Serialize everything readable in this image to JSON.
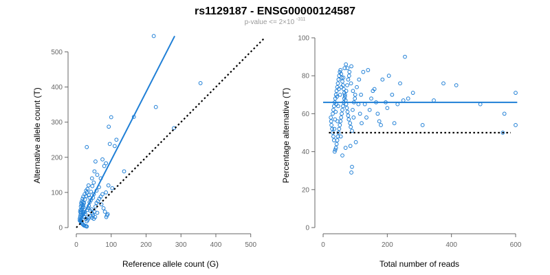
{
  "header": {
    "title": "rs1129187 - ENSG00000124587",
    "subtitle_prefix": "p-value <= 2×10",
    "subtitle_exponent": "-311"
  },
  "colors": {
    "point": "#1f7fd6",
    "fit": "#1f7fd6",
    "reference": "#000000",
    "axis": "#666666"
  },
  "chart_data": [
    {
      "type": "scatter",
      "xlabel": "Reference allele count (G)",
      "ylabel": "Alternative allele count (T)",
      "xlim": [
        0,
        540
      ],
      "ylim": [
        0,
        540
      ],
      "xticks": [
        0,
        100,
        200,
        300,
        400,
        500
      ],
      "yticks": [
        0,
        100,
        200,
        300,
        400,
        500
      ],
      "fit_line": {
        "from": [
          10,
          17
        ],
        "to": [
          282,
          545
        ]
      },
      "reference_line": {
        "from": [
          0,
          0
        ],
        "to": [
          540,
          540
        ],
        "style": "dotted"
      },
      "points": [
        [
          222,
          545
        ],
        [
          356,
          411
        ],
        [
          100,
          314
        ],
        [
          165,
          315
        ],
        [
          228,
          343
        ],
        [
          280,
          283
        ],
        [
          93,
          287
        ],
        [
          30,
          229
        ],
        [
          115,
          250
        ],
        [
          110,
          232
        ],
        [
          96,
          238
        ],
        [
          137,
          160
        ],
        [
          75,
          194
        ],
        [
          85,
          183
        ],
        [
          55,
          188
        ],
        [
          80,
          175
        ],
        [
          52,
          160
        ],
        [
          60,
          150
        ],
        [
          70,
          140
        ],
        [
          45,
          140
        ],
        [
          92,
          120
        ],
        [
          103,
          112
        ],
        [
          85,
          100
        ],
        [
          75,
          95
        ],
        [
          65,
          115
        ],
        [
          58,
          105
        ],
        [
          50,
          95
        ],
        [
          48,
          85
        ],
        [
          42,
          78
        ],
        [
          38,
          72
        ],
        [
          35,
          120
        ],
        [
          30,
          100
        ],
        [
          28,
          90
        ],
        [
          25,
          80
        ],
        [
          22,
          70
        ],
        [
          20,
          65
        ],
        [
          18,
          60
        ],
        [
          17,
          55
        ],
        [
          15,
          50
        ],
        [
          14,
          45
        ],
        [
          13,
          40
        ],
        [
          12,
          35
        ],
        [
          11,
          30
        ],
        [
          10,
          25
        ],
        [
          10,
          20
        ],
        [
          12,
          18
        ],
        [
          14,
          15
        ],
        [
          16,
          12
        ],
        [
          18,
          10
        ],
        [
          20,
          8
        ],
        [
          22,
          6
        ],
        [
          25,
          5
        ],
        [
          28,
          4
        ],
        [
          30,
          3
        ],
        [
          26,
          38
        ],
        [
          24,
          44
        ],
        [
          32,
          50
        ],
        [
          34,
          56
        ],
        [
          36,
          62
        ],
        [
          40,
          48
        ],
        [
          44,
          52
        ],
        [
          46,
          40
        ],
        [
          48,
          35
        ],
        [
          52,
          45
        ],
        [
          55,
          60
        ],
        [
          58,
          70
        ],
        [
          62,
          75
        ],
        [
          66,
          82
        ],
        [
          70,
          88
        ],
        [
          72,
          66
        ],
        [
          78,
          55
        ],
        [
          82,
          45
        ],
        [
          86,
          30
        ],
        [
          88,
          35
        ],
        [
          90,
          38
        ],
        [
          60,
          42
        ],
        [
          54,
          30
        ],
        [
          50,
          25
        ],
        [
          45,
          28
        ],
        [
          40,
          32
        ],
        [
          36,
          28
        ],
        [
          33,
          22
        ],
        [
          30,
          18
        ],
        [
          27,
          25
        ],
        [
          23,
          30
        ],
        [
          21,
          40
        ],
        [
          19,
          45
        ],
        [
          17,
          35
        ],
        [
          15,
          28
        ],
        [
          13,
          22
        ],
        [
          14,
          70
        ],
        [
          16,
          75
        ],
        [
          18,
          82
        ],
        [
          20,
          88
        ],
        [
          24,
          95
        ],
        [
          28,
          105
        ],
        [
          32,
          110
        ],
        [
          36,
          92
        ],
        [
          38,
          85
        ],
        [
          42,
          102
        ],
        [
          46,
          118
        ],
        [
          50,
          128
        ],
        [
          12,
          50
        ],
        [
          11,
          45
        ],
        [
          13,
          60
        ],
        [
          15,
          65
        ],
        [
          19,
          72
        ],
        [
          21,
          58
        ]
      ]
    },
    {
      "type": "scatter",
      "xlabel": "Total number of reads",
      "ylabel": "Percentage alternative (T)",
      "xlim": [
        0,
        600
      ],
      "ylim": [
        0,
        100
      ],
      "xticks": [
        0,
        200,
        400,
        600
      ],
      "yticks": [
        0,
        20,
        40,
        60,
        80,
        100
      ],
      "mean_line": 66,
      "reference_level": 50,
      "reference_range": [
        0,
        600
      ],
      "points": [
        [
          255,
          90
        ],
        [
          600,
          71
        ],
        [
          565,
          60
        ],
        [
          560,
          50
        ],
        [
          600,
          54
        ],
        [
          490,
          65
        ],
        [
          415,
          75
        ],
        [
          375,
          76
        ],
        [
          345,
          67
        ],
        [
          310,
          54
        ],
        [
          280,
          71
        ],
        [
          265,
          68
        ],
        [
          250,
          67
        ],
        [
          240,
          76
        ],
        [
          232,
          65
        ],
        [
          222,
          55
        ],
        [
          205,
          80
        ],
        [
          185,
          78
        ],
        [
          160,
          73
        ],
        [
          140,
          83
        ],
        [
          125,
          82
        ],
        [
          118,
          70
        ],
        [
          110,
          65
        ],
        [
          102,
          45
        ],
        [
          95,
          58
        ],
        [
          88,
          85
        ],
        [
          82,
          82
        ],
        [
          78,
          78
        ],
        [
          75,
          75
        ],
        [
          72,
          72
        ],
        [
          68,
          70
        ],
        [
          66,
          68
        ],
        [
          64,
          66
        ],
        [
          62,
          64
        ],
        [
          60,
          62
        ],
        [
          58,
          60
        ],
        [
          56,
          58
        ],
        [
          54,
          56
        ],
        [
          52,
          54
        ],
        [
          50,
          52
        ],
        [
          48,
          50
        ],
        [
          46,
          48
        ],
        [
          44,
          46
        ],
        [
          42,
          44
        ],
        [
          40,
          42
        ],
        [
          38,
          41
        ],
        [
          36,
          40
        ],
        [
          34,
          46
        ],
        [
          32,
          48
        ],
        [
          30,
          50
        ],
        [
          28,
          52
        ],
        [
          26,
          54
        ],
        [
          25,
          56
        ],
        [
          24,
          58
        ],
        [
          30,
          60
        ],
        [
          32,
          62
        ],
        [
          34,
          64
        ],
        [
          36,
          66
        ],
        [
          38,
          68
        ],
        [
          40,
          70
        ],
        [
          42,
          72
        ],
        [
          44,
          74
        ],
        [
          46,
          76
        ],
        [
          48,
          78
        ],
        [
          50,
          80
        ],
        [
          52,
          82
        ],
        [
          54,
          83
        ],
        [
          56,
          81
        ],
        [
          58,
          79
        ],
        [
          60,
          77
        ],
        [
          62,
          75
        ],
        [
          64,
          73
        ],
        [
          66,
          71
        ],
        [
          68,
          69
        ],
        [
          70,
          67
        ],
        [
          72,
          65
        ],
        [
          74,
          63
        ],
        [
          76,
          61
        ],
        [
          78,
          59
        ],
        [
          80,
          57
        ],
        [
          84,
          55
        ],
        [
          86,
          53
        ],
        [
          90,
          51
        ],
        [
          92,
          62
        ],
        [
          96,
          66
        ],
        [
          100,
          70
        ],
        [
          105,
          74
        ],
        [
          112,
          78
        ],
        [
          115,
          60
        ],
        [
          120,
          55
        ],
        [
          130,
          65
        ],
        [
          135,
          58
        ],
        [
          145,
          62
        ],
        [
          150,
          68
        ],
        [
          155,
          72
        ],
        [
          165,
          66
        ],
        [
          170,
          60
        ],
        [
          175,
          56
        ],
        [
          180,
          54
        ],
        [
          195,
          66
        ],
        [
          200,
          63
        ],
        [
          215,
          70
        ],
        [
          60,
          38
        ],
        [
          70,
          42
        ],
        [
          85,
          43
        ],
        [
          90,
          32
        ],
        [
          88,
          29
        ],
        [
          55,
          48
        ],
        [
          45,
          56
        ],
        [
          47,
          64
        ],
        [
          53,
          70
        ],
        [
          57,
          74
        ],
        [
          63,
          79
        ],
        [
          67,
          84
        ],
        [
          71,
          86
        ],
        [
          76,
          84
        ],
        [
          81,
          80
        ],
        [
          87,
          76
        ],
        [
          93,
          72
        ],
        [
          99,
          68
        ],
        [
          35,
          52
        ],
        [
          37,
          57
        ],
        [
          39,
          61
        ],
        [
          41,
          65
        ],
        [
          43,
          69
        ],
        [
          49,
          73
        ]
      ]
    }
  ]
}
